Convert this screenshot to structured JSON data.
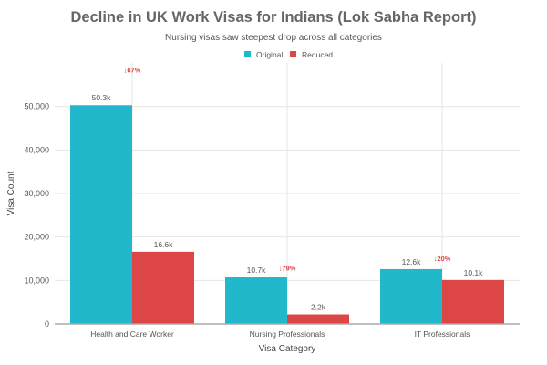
{
  "chart_data": {
    "type": "bar",
    "title": "Decline in UK Work Visas for Indians (Lok Sabha Report)",
    "subtitle": "Nursing visas saw steepest drop across all categories",
    "xlabel": "Visa Category",
    "ylabel": "Visa Count",
    "ylim": [
      0,
      60000
    ],
    "yticks": [
      0,
      10000,
      20000,
      30000,
      40000,
      50000
    ],
    "ytick_labels": [
      "0",
      "10,000",
      "20,000",
      "30,000",
      "40,000",
      "50,000"
    ],
    "grid": true,
    "legend_position": "top",
    "categories": [
      "Health and Care Worker",
      "Nursing Professionals",
      "IT Professionals"
    ],
    "series": [
      {
        "name": "Original",
        "color": "#22b8cc",
        "values": [
          50300,
          10700,
          12600
        ],
        "labels": [
          "50.3k",
          "10.7k",
          "12.6k"
        ]
      },
      {
        "name": "Reduced",
        "color": "#dc4646",
        "values": [
          16600,
          2200,
          10100
        ],
        "labels": [
          "16.6k",
          "2.2k",
          "10.1k"
        ]
      }
    ],
    "annotations": [
      "↓67%",
      "↓79%",
      "↓20%"
    ],
    "annotation_color": "#dc4646"
  }
}
